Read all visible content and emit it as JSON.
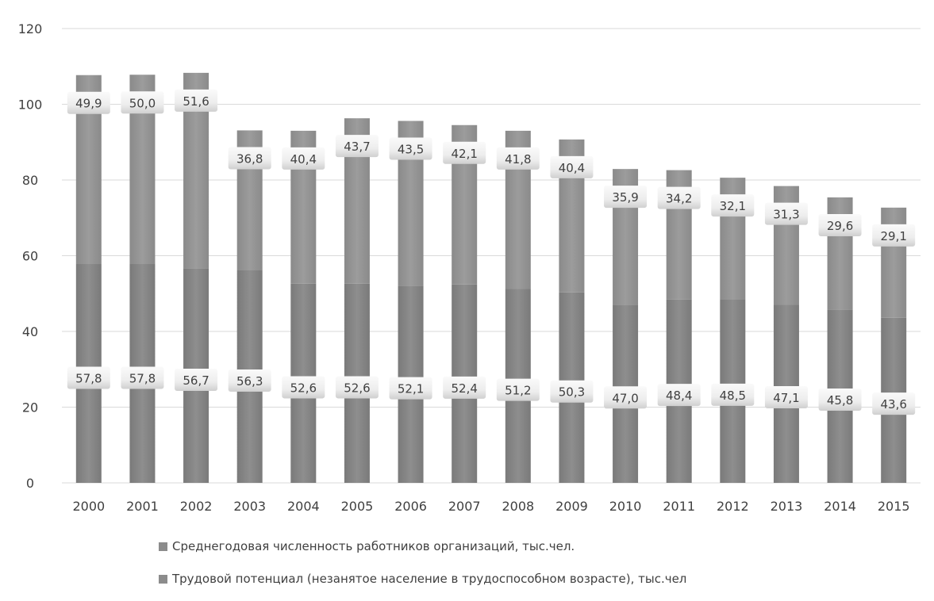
{
  "chart_data": {
    "type": "bar",
    "stacked": true,
    "categories": [
      "2000",
      "2001",
      "2002",
      "2003",
      "2004",
      "2005",
      "2006",
      "2007",
      "2008",
      "2009",
      "2010",
      "2011",
      "2012",
      "2013",
      "2014",
      "2015"
    ],
    "series": [
      {
        "name": "Среднегодовая численность работников организаций, тыс.чел.",
        "values": [
          57.8,
          57.8,
          56.7,
          56.3,
          52.6,
          52.6,
          52.1,
          52.4,
          51.2,
          50.3,
          47.0,
          48.4,
          48.5,
          47.1,
          45.8,
          43.6
        ],
        "labels": [
          "57,8",
          "57,8",
          "56,7",
          "56,3",
          "52,6",
          "52,6",
          "52,1",
          "52,4",
          "51,2",
          "50,3",
          "47,0",
          "48,4",
          "48,5",
          "47,1",
          "45,8",
          "43,6"
        ],
        "color": "#8c8c8c"
      },
      {
        "name": "Трудовой потенциал (незанятое население в трудоспособном возрасте), тыс.чел",
        "values": [
          49.9,
          50.0,
          51.6,
          36.8,
          40.4,
          43.7,
          43.5,
          42.1,
          41.8,
          40.4,
          35.9,
          34.2,
          32.1,
          31.3,
          29.6,
          29.1
        ],
        "labels": [
          "49,9",
          "50,0",
          "51,6",
          "36,8",
          "40,4",
          "43,7",
          "43,5",
          "42,1",
          "41,8",
          "40,4",
          "35,9",
          "34,2",
          "32,1",
          "31,3",
          "29,6",
          "29,1"
        ],
        "color": "#8c8c8c"
      }
    ],
    "ylim": [
      0,
      120
    ],
    "yticks": [
      "0",
      "20",
      "40",
      "60",
      "80",
      "100",
      "120"
    ],
    "grid": true,
    "legend_position": "bottom",
    "title": "",
    "xlabel": "",
    "ylabel": ""
  },
  "colors": {
    "series_base": "#8c8c8c",
    "label_box": "#f2f2f2",
    "gridline": "#d9d9d9",
    "text": "#404040"
  }
}
